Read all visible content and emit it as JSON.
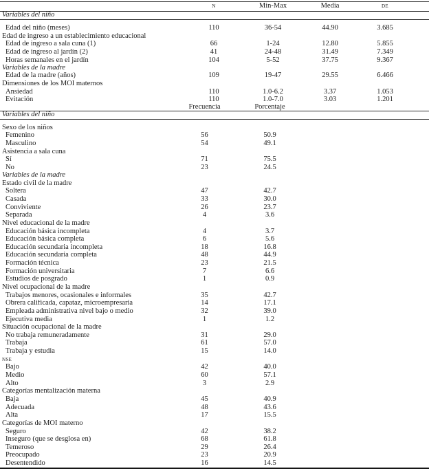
{
  "table": {
    "stats_header": {
      "n": "N",
      "min_max": "Min-Max",
      "media": "Media",
      "de": "DE"
    },
    "freq_header": {
      "frecuencia": "Frecuencia",
      "porcentaje": "Porcentaje"
    },
    "stats_rows": [
      {
        "label": "Variables del niño",
        "style": "section",
        "ruled": true
      },
      {
        "style": "gap"
      },
      {
        "label": "Edad del niño (meses)",
        "style": "item",
        "n": "110",
        "min_max": "36-54",
        "media": "44.90",
        "de": "3.685"
      },
      {
        "label": "Edad de ingreso a un establecimiento educacional",
        "style": "group"
      },
      {
        "label": "Edad de ingreso a sala cuna (1)",
        "style": "item",
        "n": "66",
        "min_max": "1-24",
        "media": "12.80",
        "de": "5.855"
      },
      {
        "label": "Edad de ingreso al jardín (2)",
        "style": "item",
        "n": "41",
        "min_max": "24-48",
        "media": "31.49",
        "de": "7.349"
      },
      {
        "label": "Horas semanales en el jardín",
        "style": "item",
        "n": "104",
        "min_max": "5-52",
        "media": "37.75",
        "de": "9.367"
      },
      {
        "label": "Variables de la madre",
        "style": "section"
      },
      {
        "label": "Edad de la madre (años)",
        "style": "item",
        "n": "109",
        "min_max": "19-47",
        "media": "29.55",
        "de": "6.466"
      },
      {
        "label": "Dimensiones de los MOI maternos",
        "style": "group"
      },
      {
        "label": "Ansiedad",
        "style": "item",
        "n": "110",
        "min_max": "1.0-6.2",
        "media": "3.37",
        "de": "1.053"
      },
      {
        "label": "Evitación",
        "style": "item",
        "n": "110",
        "min_max": "1.0-7.0",
        "media": "3.03",
        "de": "1.201"
      }
    ],
    "freq_rows": [
      {
        "label": "Variables del niño",
        "style": "section",
        "ruled": true
      },
      {
        "style": "gap"
      },
      {
        "label": "Sexo de los niños",
        "style": "group"
      },
      {
        "label": "Femenino",
        "style": "item",
        "frecuencia": "56",
        "porcentaje": "50.9"
      },
      {
        "label": "Masculino",
        "style": "item",
        "frecuencia": "54",
        "porcentaje": "49.1"
      },
      {
        "label": "Asistencia a sala cuna",
        "style": "group"
      },
      {
        "label": "Sí",
        "style": "item",
        "frecuencia": "71",
        "porcentaje": "75.5"
      },
      {
        "label": "No",
        "style": "item",
        "frecuencia": "23",
        "porcentaje": "24.5"
      },
      {
        "label": "Variables de la madre",
        "style": "section"
      },
      {
        "label": "Estado civil de la madre",
        "style": "group"
      },
      {
        "label": "Soltera",
        "style": "item",
        "frecuencia": "47",
        "porcentaje": "42.7"
      },
      {
        "label": "Casada",
        "style": "item",
        "frecuencia": "33",
        "porcentaje": "30.0"
      },
      {
        "label": "Conviviente",
        "style": "item",
        "frecuencia": "26",
        "porcentaje": "23.7"
      },
      {
        "label": "Separada",
        "style": "item",
        "frecuencia": "4",
        "porcentaje": "3.6"
      },
      {
        "label": "Nivel educacional de la madre",
        "style": "group"
      },
      {
        "label": "Educación básica incompleta",
        "style": "item",
        "frecuencia": "4",
        "porcentaje": "3.7"
      },
      {
        "label": "Educación básica completa",
        "style": "item",
        "frecuencia": "6",
        "porcentaje": "5.6"
      },
      {
        "label": "Educación secundaria incompleta",
        "style": "item",
        "frecuencia": "18",
        "porcentaje": "16.8"
      },
      {
        "label": "Educación secundaria completa",
        "style": "item",
        "frecuencia": "48",
        "porcentaje": "44.9"
      },
      {
        "label": "Formación técnica",
        "style": "item",
        "frecuencia": "23",
        "porcentaje": "21.5"
      },
      {
        "label": "Formación universitaria",
        "style": "item",
        "frecuencia": "7",
        "porcentaje": "6.6"
      },
      {
        "label": "Estudios de posgrado",
        "style": "item",
        "frecuencia": "1",
        "porcentaje": "0.9"
      },
      {
        "label": "Nivel ocupacional de la madre",
        "style": "group"
      },
      {
        "label": "Trabajos menores, ocasionales e informales",
        "style": "item",
        "frecuencia": "35",
        "porcentaje": "42.7"
      },
      {
        "label": "Obrera calificada, capataz, microempresaria",
        "style": "item",
        "frecuencia": "14",
        "porcentaje": "17.1"
      },
      {
        "label": "Empleada administrativa nivel bajo o medio",
        "style": "item",
        "frecuencia": "32",
        "porcentaje": "39.0"
      },
      {
        "label": "Ejecutiva media",
        "style": "item",
        "frecuencia": "1",
        "porcentaje": "1.2"
      },
      {
        "label": "Situación ocupacional de la madre",
        "style": "group"
      },
      {
        "label": "No trabaja remuneradamente",
        "style": "item",
        "frecuencia": "31",
        "porcentaje": "29.0"
      },
      {
        "label": "Trabaja",
        "style": "item",
        "frecuencia": "61",
        "porcentaje": "57.0"
      },
      {
        "label": "Trabaja y estudia",
        "style": "item",
        "frecuencia": "15",
        "porcentaje": "14.0"
      },
      {
        "label": "NSE",
        "style": "group",
        "sc": true
      },
      {
        "label": "Bajo",
        "style": "item",
        "frecuencia": "42",
        "porcentaje": "40.0"
      },
      {
        "label": "Medio",
        "style": "item",
        "frecuencia": "60",
        "porcentaje": "57.1"
      },
      {
        "label": "Alto",
        "style": "item",
        "frecuencia": "3",
        "porcentaje": "2.9"
      },
      {
        "label": "Categorías mentalización materna",
        "style": "group"
      },
      {
        "label": "Baja",
        "style": "item",
        "frecuencia": "45",
        "porcentaje": "40.9"
      },
      {
        "label": "Adecuada",
        "style": "item",
        "frecuencia": "48",
        "porcentaje": "43.6"
      },
      {
        "label": "Alta",
        "style": "item",
        "frecuencia": "17",
        "porcentaje": "15.5"
      },
      {
        "label": "Categorías de MOI materno",
        "style": "group"
      },
      {
        "label": "Seguro",
        "style": "item",
        "frecuencia": "42",
        "porcentaje": "38.2"
      },
      {
        "label": "Inseguro (que se desglosa en)",
        "style": "item",
        "frecuencia": "68",
        "porcentaje": "61.8"
      },
      {
        "label": "Temeroso",
        "style": "item",
        "frecuencia": "29",
        "porcentaje": "26.4"
      },
      {
        "label": "Preocupado",
        "style": "item",
        "frecuencia": "23",
        "porcentaje": "20.9"
      },
      {
        "label": "Desentendido",
        "style": "item",
        "frecuencia": "16",
        "porcentaje": "14.5"
      }
    ]
  }
}
